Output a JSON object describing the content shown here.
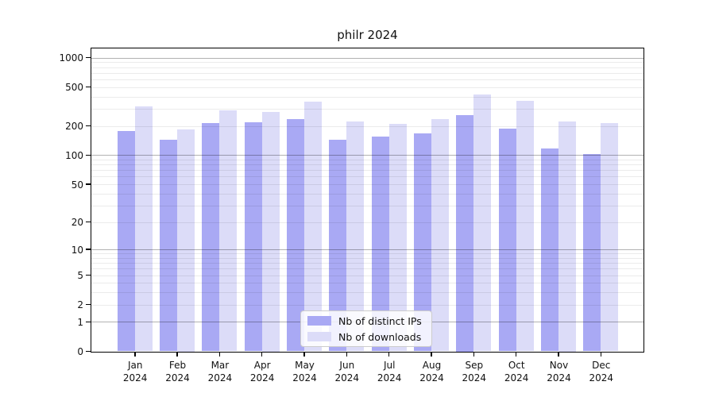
{
  "title": "philr 2024",
  "chart_data": {
    "type": "bar",
    "title": "philr 2024",
    "categories": [
      "Jan 2024",
      "Feb 2024",
      "Mar 2024",
      "Apr 2024",
      "May 2024",
      "Jun 2024",
      "Jul 2024",
      "Aug 2024",
      "Sep 2024",
      "Oct 2024",
      "Nov 2024",
      "Dec 2024"
    ],
    "series": [
      {
        "name": "Nb of distinct IPs",
        "color": "#a9a9f4",
        "values": [
          178,
          143,
          215,
          218,
          233,
          143,
          155,
          168,
          260,
          188,
          118,
          103
        ]
      },
      {
        "name": "Nb of downloads",
        "color": "#dcdcf8",
        "values": [
          315,
          184,
          289,
          278,
          356,
          220,
          209,
          233,
          416,
          360,
          222,
          215
        ]
      }
    ],
    "yscale": "log10(value+1)",
    "yticks": [
      0,
      1,
      2,
      5,
      10,
      20,
      50,
      100,
      200,
      500,
      1000
    ],
    "ylim": [
      0,
      1230
    ],
    "grid": "horizontal, minor lines at 1-9 per decade, decade lines darker, drawn over bars",
    "legend_position": "lower center",
    "xlabel": "",
    "ylabel": ""
  }
}
